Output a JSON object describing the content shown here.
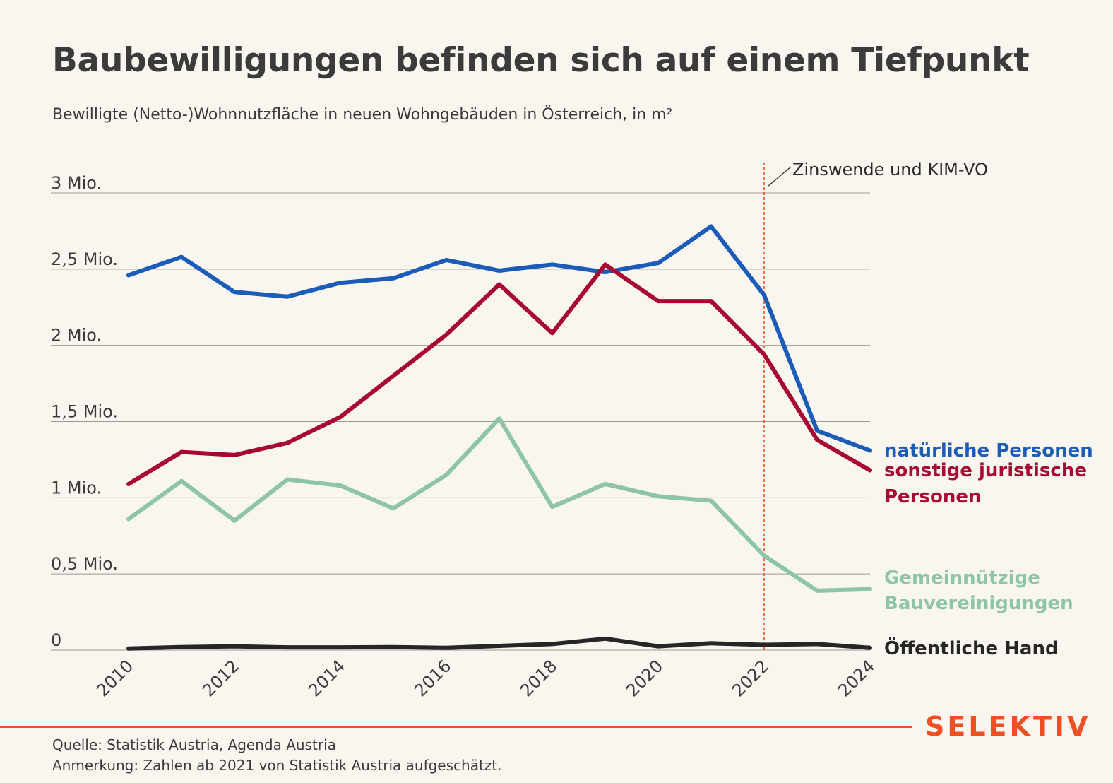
{
  "header": {
    "title": "Baubewilligungen befinden sich auf einem Tiefpunkt",
    "subtitle": "Bewilligte (Netto-)Wohnnutzfläche in neuen Wohngebäuden in Österreich, in m²"
  },
  "footer": {
    "source": "Quelle: Statistik Austria, Agenda Austria",
    "note": "Anmerkung: Zahlen ab 2021 von Statistik Austria aufgeschätzt.",
    "brand": "SELEKTIV",
    "brand_color": "#f04e23"
  },
  "chart_data": {
    "type": "line",
    "x": [
      2010,
      2011,
      2012,
      2013,
      2014,
      2015,
      2016,
      2017,
      2018,
      2019,
      2020,
      2021,
      2022,
      2023,
      2024
    ],
    "x_tick_labels": [
      "2010",
      "2012",
      "2014",
      "2016",
      "2018",
      "2020",
      "2022",
      "2024"
    ],
    "x_tick_values": [
      2010,
      2012,
      2014,
      2016,
      2018,
      2020,
      2022,
      2024
    ],
    "ylim": [
      0,
      3000000
    ],
    "y_ticks": [
      {
        "value": 0,
        "label": "0"
      },
      {
        "value": 500000,
        "label": "0,5 Mio."
      },
      {
        "value": 1000000,
        "label": "1 Mio."
      },
      {
        "value": 1500000,
        "label": "1,5 Mio."
      },
      {
        "value": 2000000,
        "label": "2 Mio."
      },
      {
        "value": 2500000,
        "label": "2,5 Mio."
      },
      {
        "value": 3000000,
        "label": "3 Mio."
      }
    ],
    "grid": true,
    "legend": "direct labels at right end of lines",
    "series": [
      {
        "key": "natuerlich",
        "name": "natürliche Personen",
        "label_lines": [
          "natürliche Personen"
        ],
        "color": "#1a5cb8",
        "values": [
          2460000,
          2580000,
          2350000,
          2320000,
          2410000,
          2440000,
          2560000,
          2490000,
          2530000,
          2480000,
          2540000,
          2780000,
          2330000,
          1440000,
          1310000
        ]
      },
      {
        "key": "juristisch",
        "name": "sonstige juristische Personen",
        "label_lines": [
          "sonstige juristische",
          "Personen"
        ],
        "color": "#a8072f",
        "values": [
          1090000,
          1300000,
          1280000,
          1360000,
          1530000,
          1800000,
          2070000,
          2400000,
          2080000,
          2530000,
          2290000,
          2290000,
          1940000,
          1380000,
          1180000
        ]
      },
      {
        "key": "gemeinnuetzig",
        "name": "Gemeinnützige Bauvereinigungen",
        "label_lines": [
          "Gemeinnützige",
          "Bauvereinigungen"
        ],
        "color": "#8ec4a8",
        "values": [
          860000,
          1110000,
          850000,
          1120000,
          1080000,
          930000,
          1150000,
          1520000,
          940000,
          1090000,
          1010000,
          980000,
          620000,
          390000,
          400000
        ]
      },
      {
        "key": "oeffentlich",
        "name": "Öffentliche Hand",
        "label_lines": [
          "Öffentliche Hand"
        ],
        "color": "#262626",
        "values": [
          10000,
          20000,
          25000,
          18000,
          18000,
          20000,
          15000,
          28000,
          40000,
          75000,
          25000,
          45000,
          35000,
          40000,
          15000
        ]
      }
    ],
    "annotation": {
      "x": 2022,
      "text": "Zinswende und KIM-VO",
      "color": "#f04e23"
    }
  }
}
